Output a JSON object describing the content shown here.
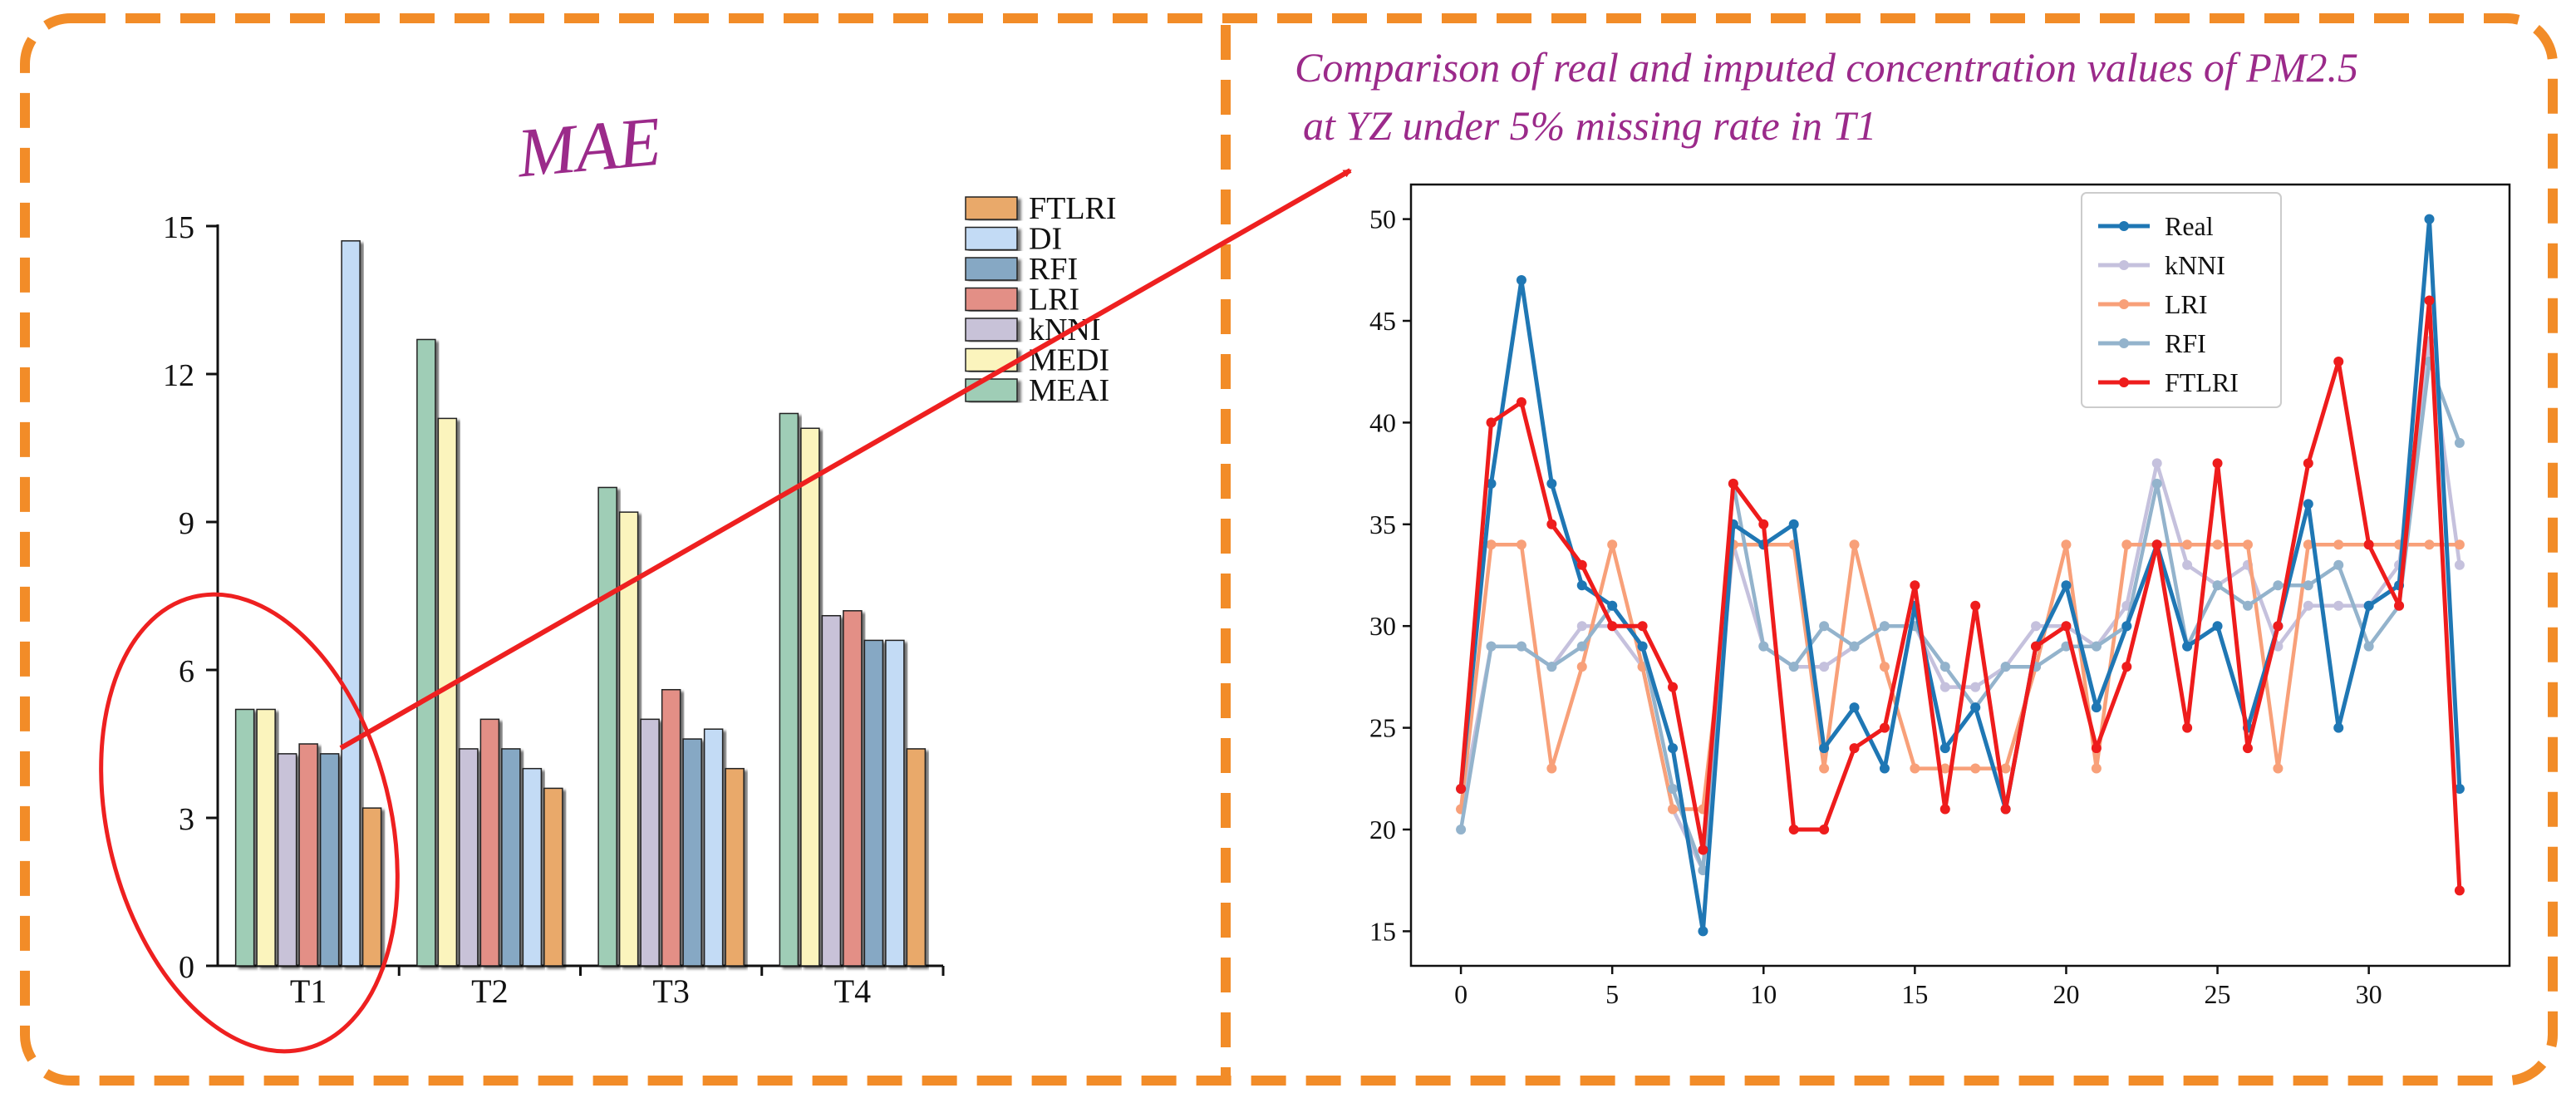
{
  "colors": {
    "frame": "#f28c28",
    "arrow": "#ee2020",
    "title_purple": "#9b2a8a",
    "axis": "#111111"
  },
  "panels": {
    "left": {
      "title": "MAE"
    },
    "right": {
      "title_line1": "Comparison of real and imputed concentration values of PM2.5",
      "title_line2": "at YZ under 5% missing rate in T1"
    }
  },
  "chart_data": [
    {
      "type": "bar",
      "title": "MAE",
      "categories": [
        "T1",
        "T2",
        "T3",
        "T4"
      ],
      "ylim": [
        0,
        15
      ],
      "yticks": [
        0,
        3,
        6,
        9,
        12,
        15
      ],
      "legend_position": "top-right",
      "series": [
        {
          "name": "MEAI",
          "color": "#9fcdb6",
          "values": [
            5.2,
            12.7,
            9.7,
            11.2
          ]
        },
        {
          "name": "MEDI",
          "color": "#fbf4bd",
          "values": [
            5.2,
            11.1,
            9.2,
            10.9
          ]
        },
        {
          "name": "kNNI",
          "color": "#c8c2d8",
          "values": [
            4.3,
            4.4,
            5.0,
            7.1
          ]
        },
        {
          "name": "LRI",
          "color": "#e38f86",
          "values": [
            4.5,
            5.0,
            5.6,
            7.2
          ]
        },
        {
          "name": "RFI",
          "color": "#86a8c4",
          "values": [
            4.3,
            4.4,
            4.6,
            6.6
          ]
        },
        {
          "name": "DI",
          "color": "#c3dbf5",
          "values": [
            14.7,
            4.0,
            4.8,
            6.6
          ]
        },
        {
          "name": "FTLRI",
          "color": "#e9a96a",
          "values": [
            3.2,
            3.6,
            4.0,
            4.4
          ]
        }
      ],
      "legend_order": [
        "FTLRI",
        "DI",
        "RFI",
        "LRI",
        "kNNI",
        "MEDI",
        "MEAI"
      ]
    },
    {
      "type": "line",
      "title": "Comparison of real and imputed concentration values of PM2.5 at YZ under 5% missing rate in T1",
      "xlim": [
        -1.65,
        34.65
      ],
      "ylim": [
        13.3,
        51.7
      ],
      "xticks": [
        0,
        5,
        10,
        15,
        20,
        25,
        30
      ],
      "yticks": [
        15,
        20,
        25,
        30,
        35,
        40,
        45,
        50
      ],
      "legend_position": "top-center",
      "series": [
        {
          "name": "Real",
          "color": "#1f77b4",
          "values": [
            22,
            37,
            47,
            37,
            32,
            31,
            29,
            24,
            15,
            35,
            34,
            35,
            24,
            26,
            23,
            31,
            24,
            26,
            21,
            29,
            32,
            26,
            30,
            34,
            29,
            30,
            25,
            30,
            36,
            25,
            31,
            32,
            50,
            22
          ]
        },
        {
          "name": "kNNI",
          "color": "#c5c1dd",
          "values": [
            21,
            29,
            29,
            28,
            30,
            30,
            28,
            21,
            18,
            34,
            29,
            28,
            28,
            29,
            30,
            30,
            27,
            27,
            28,
            30,
            30,
            29,
            31,
            38,
            33,
            32,
            33,
            29,
            31,
            31,
            31,
            33,
            44,
            33
          ]
        },
        {
          "name": "LRI",
          "color": "#f8a079",
          "values": [
            21,
            34,
            34,
            23,
            28,
            34,
            28,
            21,
            21,
            34,
            34,
            34,
            23,
            34,
            28,
            23,
            23,
            23,
            23,
            28,
            34,
            23,
            34,
            34,
            34,
            34,
            34,
            23,
            34,
            34,
            34,
            34,
            34,
            34
          ]
        },
        {
          "name": "RFI",
          "color": "#93b3cc",
          "values": [
            20,
            29,
            29,
            28,
            29,
            31,
            29,
            22,
            18,
            37,
            29,
            28,
            30,
            29,
            30,
            30,
            28,
            26,
            28,
            28,
            29,
            29,
            30,
            37,
            29,
            32,
            31,
            32,
            32,
            33,
            29,
            31,
            43,
            39
          ]
        },
        {
          "name": "FTLRI",
          "color": "#ee1c1c",
          "values": [
            22,
            40,
            41,
            35,
            33,
            30,
            30,
            27,
            19,
            37,
            35,
            20,
            20,
            24,
            25,
            32,
            21,
            31,
            21,
            29,
            30,
            24,
            28,
            34,
            25,
            38,
            24,
            30,
            38,
            43,
            34,
            31,
            46,
            17
          ]
        }
      ]
    }
  ]
}
